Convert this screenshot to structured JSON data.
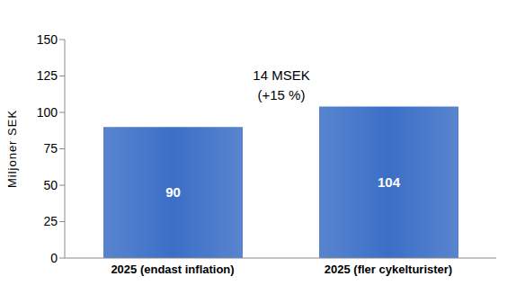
{
  "chart_data": {
    "type": "bar",
    "categories": [
      "2025 (endast inflation)",
      "2025 (fler cykelturister)"
    ],
    "values": [
      90,
      104
    ],
    "color": "#3b6fc6",
    "ylim": [
      0,
      150
    ],
    "yticks": [
      0,
      25,
      50,
      75,
      100,
      125,
      150
    ],
    "y_label": "Miljoner SEK",
    "annotations": [
      "14 MSEK",
      "(+15 %)"
    ],
    "data_labels": true,
    "grid": false
  }
}
